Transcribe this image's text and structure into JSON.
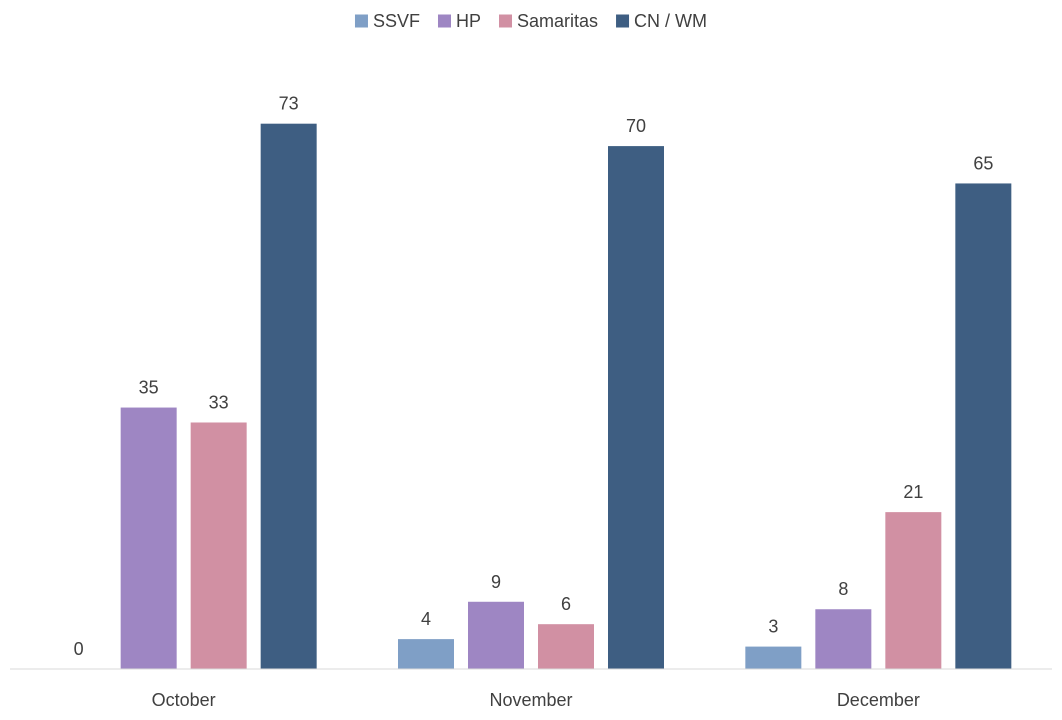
{
  "chart_data": {
    "type": "bar",
    "title": "",
    "xlabel": "",
    "ylabel": "",
    "categories": [
      "October",
      "November",
      "December"
    ],
    "series": [
      {
        "name": "SSVF",
        "color": "#7f9fc6",
        "values": [
          0,
          4,
          3
        ]
      },
      {
        "name": "HP",
        "color": "#9e86c3",
        "values": [
          35,
          9,
          8
        ]
      },
      {
        "name": "Samaritas",
        "color": "#d190a3",
        "values": [
          33,
          6,
          21
        ]
      },
      {
        "name": "CN / WM",
        "color": "#3e5e82",
        "values": [
          73,
          70,
          65
        ]
      }
    ],
    "ylim": [
      0,
      80
    ],
    "grid": false,
    "legend": "top-center",
    "data_labels": true
  }
}
